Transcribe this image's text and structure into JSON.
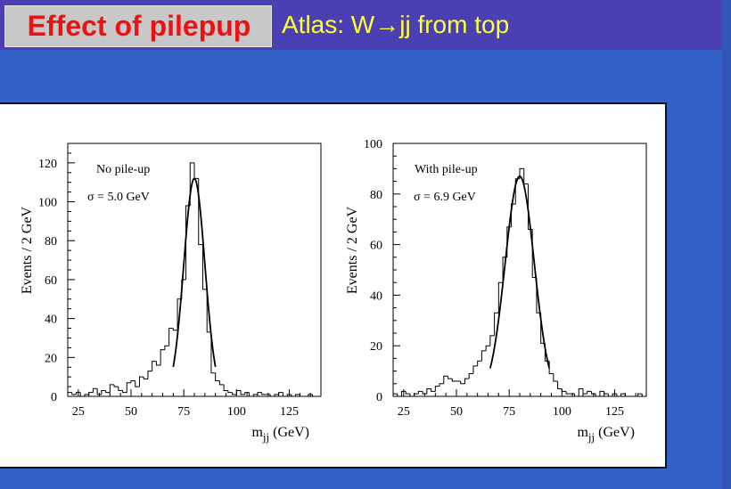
{
  "header": {
    "title": "Effect of pilepup",
    "subtitle": "Atlas: W→jj from top"
  },
  "colors": {
    "header_bg": "#4a40b4",
    "page_bg": "#3461c8",
    "title_text": "#ee1111",
    "subtitle_text": "#ffff33"
  },
  "chart_data": [
    {
      "type": "histogram",
      "annotation": "No pile-up",
      "sigma_label": "σ = 5.0 GeV",
      "sigma": 5.0,
      "ylabel": "Events / 2 GeV",
      "xlabel": "m",
      "xlabel_sub": "jj",
      "xlabel_unit": "(GeV)",
      "xlim": [
        20,
        140
      ],
      "ylim": [
        0,
        130
      ],
      "xticks": [
        25,
        50,
        75,
        100,
        125
      ],
      "yticks": [
        0,
        20,
        40,
        60,
        80,
        100,
        120
      ],
      "bin_width": 2,
      "bins_x": [
        20,
        22,
        24,
        26,
        28,
        30,
        32,
        34,
        36,
        38,
        40,
        42,
        44,
        46,
        48,
        50,
        52,
        54,
        56,
        58,
        60,
        62,
        64,
        66,
        68,
        70,
        72,
        74,
        76,
        78,
        80,
        82,
        84,
        86,
        88,
        90,
        92,
        94,
        96,
        98,
        100,
        102,
        104,
        106,
        108,
        110,
        112,
        114,
        116,
        118,
        120,
        122,
        124,
        126,
        128,
        130,
        132,
        134,
        136,
        138
      ],
      "values": [
        2,
        1,
        2,
        0,
        1,
        2,
        4,
        1,
        3,
        2,
        6,
        5,
        3,
        2,
        7,
        8,
        5,
        10,
        9,
        13,
        18,
        16,
        24,
        26,
        35,
        34,
        50,
        60,
        98,
        120,
        112,
        78,
        55,
        33,
        12,
        8,
        6,
        3,
        2,
        1,
        3,
        1,
        2,
        0,
        1,
        2,
        1,
        1,
        0,
        1,
        2,
        0,
        1,
        0,
        1,
        0,
        0,
        1,
        0,
        0
      ],
      "fit": {
        "mean": 80,
        "sigma": 5.0,
        "amplitude": 112,
        "range": [
          70,
          90
        ]
      }
    },
    {
      "type": "histogram",
      "annotation": "With pile-up",
      "sigma_label": "σ = 6.9 GeV",
      "sigma": 6.9,
      "ylabel": "Events / 2 GeV",
      "xlabel": "m",
      "xlabel_sub": "jj",
      "xlabel_unit": "(GeV)",
      "xlim": [
        20,
        140
      ],
      "ylim": [
        0,
        100
      ],
      "xticks": [
        25,
        50,
        75,
        100,
        125
      ],
      "yticks": [
        0,
        20,
        40,
        60,
        80,
        100
      ],
      "bin_width": 2,
      "bins_x": [
        20,
        22,
        24,
        26,
        28,
        30,
        32,
        34,
        36,
        38,
        40,
        42,
        44,
        46,
        48,
        50,
        52,
        54,
        56,
        58,
        60,
        62,
        64,
        66,
        68,
        70,
        72,
        74,
        76,
        78,
        80,
        82,
        84,
        86,
        88,
        90,
        92,
        94,
        96,
        98,
        100,
        102,
        104,
        106,
        108,
        110,
        112,
        114,
        116,
        118,
        120,
        122,
        124,
        126,
        128,
        130,
        132,
        134,
        136,
        138
      ],
      "values": [
        1,
        0,
        2,
        1,
        0,
        1,
        2,
        1,
        3,
        2,
        4,
        5,
        8,
        7,
        6,
        6,
        5,
        7,
        9,
        12,
        14,
        18,
        20,
        24,
        33,
        45,
        55,
        67,
        76,
        86,
        90,
        84,
        66,
        47,
        33,
        21,
        14,
        9,
        6,
        3,
        2,
        1,
        1,
        0,
        3,
        1,
        2,
        1,
        0,
        2,
        1,
        0,
        1,
        0,
        1,
        0,
        0,
        0,
        1,
        0
      ],
      "fit": {
        "mean": 80,
        "sigma": 6.9,
        "amplitude": 87,
        "range": [
          66,
          94
        ]
      }
    }
  ]
}
